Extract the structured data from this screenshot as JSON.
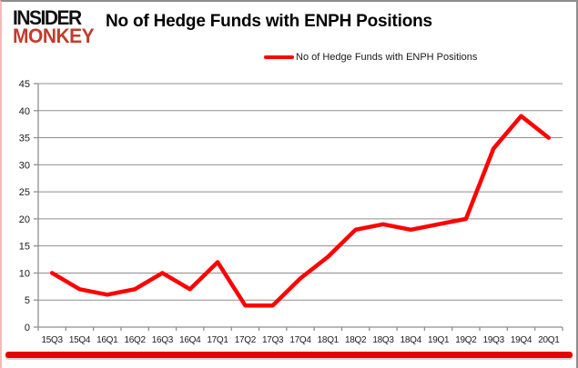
{
  "brand": {
    "line1": "INSIDER",
    "line2": "MONKEY"
  },
  "title": "No of Hedge Funds with ENPH Positions",
  "legend": {
    "label": "No of Hedge Funds with ENPH Positions"
  },
  "colors": {
    "series": "#fe0000",
    "brand_black": "#111111",
    "brand_red": "#c23c2c",
    "grid": "#8f8f8f",
    "axis": "#8f8f8f",
    "tick_text": "#1a1a1a",
    "frame_gray": "#8d8d8d",
    "frame_pink": "#f2bcba",
    "bottom_bar": "#e30505"
  },
  "chart_data": {
    "type": "line",
    "title": "No of Hedge Funds with ENPH Positions",
    "categories": [
      "15Q3",
      "15Q4",
      "16Q1",
      "16Q2",
      "16Q3",
      "16Q4",
      "17Q1",
      "17Q2",
      "17Q3",
      "17Q4",
      "18Q1",
      "18Q2",
      "18Q3",
      "18Q4",
      "19Q1",
      "19Q2",
      "19Q3",
      "19Q4",
      "20Q1"
    ],
    "series": [
      {
        "name": "No of Hedge Funds with ENPH Positions",
        "values": [
          10,
          7,
          6,
          7,
          10,
          7,
          12,
          4,
          4,
          9,
          13,
          18,
          19,
          18,
          19,
          20,
          33,
          39,
          35
        ]
      }
    ],
    "xlabel": "",
    "ylabel": "",
    "ylim": [
      0,
      45
    ],
    "ytick_step": 5,
    "yticks": [
      0,
      5,
      10,
      15,
      20,
      25,
      30,
      35,
      40,
      45
    ],
    "grid": true,
    "legend_position": "top-center"
  }
}
